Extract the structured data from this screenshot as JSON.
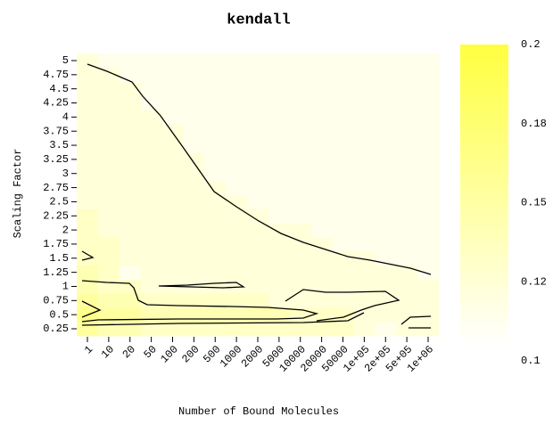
{
  "chart_data": {
    "type": "heatmap",
    "title": "kendall",
    "xlabel": "Number of Bound Molecules",
    "ylabel": "Scaling Factor",
    "x": [
      "1",
      "10",
      "20",
      "50",
      "100",
      "200",
      "500",
      "1000",
      "2000",
      "5000",
      "10000",
      "20000",
      "50000",
      "1e+05",
      "2e+05",
      "5e+05",
      "1e+06"
    ],
    "y": [
      0.25,
      0.5,
      0.75,
      1,
      1.25,
      1.5,
      1.75,
      2,
      2.25,
      2.5,
      2.75,
      3,
      3.25,
      3.5,
      3.75,
      4,
      4.25,
      4.5,
      4.75,
      5
    ],
    "z": [
      [
        0.15,
        0.14,
        0.14,
        0.13,
        0.13,
        0.13,
        0.13,
        0.13,
        0.13,
        0.13,
        0.13,
        0.13,
        0.13,
        0.12,
        0.11,
        0.12,
        0.12
      ],
      [
        0.16,
        0.15,
        0.15,
        0.14,
        0.14,
        0.14,
        0.14,
        0.14,
        0.14,
        0.14,
        0.13,
        0.13,
        0.13,
        0.12,
        0.12,
        0.12,
        0.12
      ],
      [
        0.15,
        0.14,
        0.14,
        0.13,
        0.13,
        0.13,
        0.13,
        0.13,
        0.13,
        0.12,
        0.12,
        0.12,
        0.12,
        0.12,
        0.12,
        0.12,
        0.12
      ],
      [
        0.14,
        0.13,
        0.13,
        0.12,
        0.12,
        0.12,
        0.12,
        0.12,
        0.12,
        0.12,
        0.12,
        0.12,
        0.12,
        0.12,
        0.12,
        0.12,
        0.12
      ],
      [
        0.14,
        0.13,
        0.11,
        0.12,
        0.12,
        0.12,
        0.12,
        0.12,
        0.12,
        0.12,
        0.12,
        0.12,
        0.12,
        0.12,
        0.12,
        0.12,
        0.11
      ],
      [
        0.13,
        0.13,
        0.12,
        0.12,
        0.12,
        0.12,
        0.12,
        0.12,
        0.12,
        0.12,
        0.12,
        0.12,
        0.12,
        0.12,
        0.11,
        0.11,
        0.11
      ],
      [
        0.13,
        0.13,
        0.12,
        0.12,
        0.12,
        0.12,
        0.12,
        0.12,
        0.12,
        0.12,
        0.12,
        0.12,
        0.11,
        0.11,
        0.11,
        0.11,
        0.11
      ],
      [
        0.13,
        0.12,
        0.12,
        0.12,
        0.12,
        0.12,
        0.12,
        0.12,
        0.12,
        0.12,
        0.12,
        0.11,
        0.11,
        0.11,
        0.11,
        0.11,
        0.11
      ],
      [
        0.13,
        0.12,
        0.12,
        0.12,
        0.12,
        0.12,
        0.12,
        0.12,
        0.12,
        0.11,
        0.11,
        0.11,
        0.11,
        0.11,
        0.11,
        0.11,
        0.11
      ],
      [
        0.12,
        0.12,
        0.12,
        0.12,
        0.12,
        0.12,
        0.12,
        0.12,
        0.11,
        0.11,
        0.11,
        0.11,
        0.11,
        0.11,
        0.11,
        0.11,
        0.11
      ],
      [
        0.12,
        0.12,
        0.12,
        0.12,
        0.12,
        0.12,
        0.12,
        0.11,
        0.11,
        0.11,
        0.11,
        0.11,
        0.11,
        0.11,
        0.11,
        0.11,
        0.11
      ],
      [
        0.12,
        0.12,
        0.12,
        0.12,
        0.12,
        0.12,
        0.11,
        0.11,
        0.11,
        0.11,
        0.11,
        0.11,
        0.11,
        0.11,
        0.11,
        0.11,
        0.11
      ],
      [
        0.12,
        0.12,
        0.12,
        0.12,
        0.12,
        0.12,
        0.11,
        0.11,
        0.11,
        0.11,
        0.11,
        0.11,
        0.11,
        0.11,
        0.11,
        0.11,
        0.11
      ],
      [
        0.12,
        0.12,
        0.12,
        0.12,
        0.12,
        0.11,
        0.11,
        0.11,
        0.11,
        0.11,
        0.11,
        0.11,
        0.11,
        0.11,
        0.11,
        0.11,
        0.11
      ],
      [
        0.12,
        0.12,
        0.12,
        0.12,
        0.12,
        0.11,
        0.11,
        0.11,
        0.11,
        0.11,
        0.11,
        0.11,
        0.11,
        0.11,
        0.11,
        0.11,
        0.11
      ],
      [
        0.12,
        0.12,
        0.12,
        0.12,
        0.11,
        0.11,
        0.11,
        0.11,
        0.11,
        0.11,
        0.11,
        0.11,
        0.11,
        0.11,
        0.11,
        0.11,
        0.11
      ],
      [
        0.12,
        0.12,
        0.12,
        0.11,
        0.11,
        0.11,
        0.11,
        0.11,
        0.11,
        0.11,
        0.11,
        0.11,
        0.11,
        0.11,
        0.11,
        0.11,
        0.11
      ],
      [
        0.12,
        0.12,
        0.12,
        0.11,
        0.11,
        0.11,
        0.11,
        0.11,
        0.11,
        0.11,
        0.11,
        0.11,
        0.11,
        0.11,
        0.11,
        0.11,
        0.11
      ],
      [
        0.12,
        0.12,
        0.11,
        0.11,
        0.11,
        0.11,
        0.11,
        0.11,
        0.11,
        0.11,
        0.11,
        0.11,
        0.11,
        0.11,
        0.11,
        0.11,
        0.11
      ],
      [
        0.12,
        0.11,
        0.11,
        0.11,
        0.11,
        0.11,
        0.11,
        0.11,
        0.11,
        0.11,
        0.11,
        0.11,
        0.11,
        0.11,
        0.11,
        0.11,
        0.11
      ]
    ],
    "colors": [
      "#ffffff",
      "#ffff40"
    ],
    "clim": [
      0.1,
      0.2
    ],
    "cticks": [
      0.1,
      {
        "value": 0.125,
        "label": "0.12"
      },
      0.15,
      {
        "value": 0.175,
        "label": "0.18"
      },
      0.2
    ]
  }
}
